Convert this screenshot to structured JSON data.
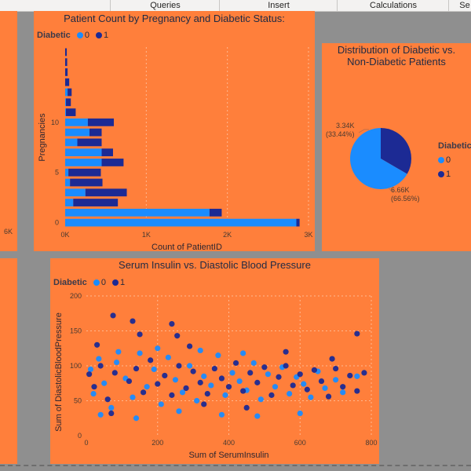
{
  "ribbon": {
    "tabs": [
      {
        "label": "Queries",
        "left": 140,
        "width": 139
      },
      {
        "label": "Insert",
        "left": 279,
        "width": 150
      },
      {
        "label": "Calculations",
        "left": 429,
        "width": 142
      },
      {
        "label": "Se",
        "left": 571,
        "width": 40
      }
    ]
  },
  "left_partial": {
    "tick": "6K"
  },
  "bar_chart": {
    "title": "Patient Count by Pregnancy and Diabetic Status:",
    "legend": {
      "title": "Diabetic",
      "items": [
        {
          "label": "0",
          "color": "#1a8cff"
        },
        {
          "label": "1",
          "color": "#1c2a94"
        }
      ]
    },
    "xlabel": "Count of PatientID",
    "ylabel": "Pregnancies",
    "x_ticks": [
      "0K",
      "1K",
      "2K",
      "3K"
    ],
    "y_ticks": [
      "0",
      "5",
      "10"
    ],
    "chart_data": {
      "type": "bar",
      "orientation": "horizontal",
      "stacked": true,
      "categories": [
        "0",
        "1",
        "2",
        "3",
        "4",
        "5",
        "6",
        "7",
        "8",
        "9",
        "10",
        "11",
        "12",
        "13",
        "14",
        "15",
        "16",
        "17"
      ],
      "series": [
        {
          "name": "0",
          "color": "#1a8cff",
          "values": [
            2850,
            1780,
            100,
            250,
            60,
            40,
            450,
            450,
            150,
            300,
            280,
            10,
            10,
            30,
            0,
            0,
            0,
            0
          ]
        },
        {
          "name": "1",
          "color": "#1c2a94",
          "values": [
            40,
            150,
            550,
            510,
            400,
            400,
            270,
            140,
            300,
            150,
            320,
            120,
            60,
            50,
            50,
            30,
            25,
            20
          ]
        }
      ],
      "xlim": [
        0,
        3000
      ]
    }
  },
  "pie_chart": {
    "title_line1": "Distribution of Diabetic vs.",
    "title_line2": "Non-Diabetic Patients",
    "legend": {
      "title": "Diabetic",
      "items": [
        {
          "label": "0",
          "color": "#1a8cff"
        },
        {
          "label": "1",
          "color": "#1c2a94"
        }
      ]
    },
    "labels": [
      {
        "value": "3.34K",
        "pct": "(33.44%)"
      },
      {
        "value": "6.66K",
        "pct": "(66.56%)"
      }
    ],
    "chart_data": {
      "type": "pie",
      "categories": [
        "1",
        "0"
      ],
      "values": [
        3.34,
        6.66
      ],
      "colors": [
        "#1c2a94",
        "#1a8cff"
      ]
    }
  },
  "scatter_chart": {
    "title": "Serum Insulin vs. Diastolic Blood Pressure",
    "legend": {
      "title": "Diabetic",
      "items": [
        {
          "label": "0",
          "color": "#1a8cff"
        },
        {
          "label": "1",
          "color": "#1c2a94"
        }
      ]
    },
    "xlabel": "Sum of SerumInsulin",
    "ylabel": "Sum of DiastolicBloodPressure",
    "x_ticks": [
      "0",
      "200",
      "400",
      "600",
      "800"
    ],
    "y_ticks": [
      "0",
      "50",
      "100",
      "150",
      "200"
    ],
    "chart_data": {
      "type": "scatter",
      "xlim": [
        0,
        800
      ],
      "ylim": [
        0,
        200
      ],
      "series": [
        {
          "name": "0",
          "color": "#1a8cff",
          "points": [
            [
              12,
              95
            ],
            [
              20,
              60
            ],
            [
              35,
              110
            ],
            [
              50,
              75
            ],
            [
              70,
              40
            ],
            [
              85,
              105
            ],
            [
              110,
              82
            ],
            [
              130,
              55
            ],
            [
              150,
              118
            ],
            [
              170,
              70
            ],
            [
              190,
              95
            ],
            [
              210,
              45
            ],
            [
              230,
              112
            ],
            [
              250,
              80
            ],
            [
              270,
              62
            ],
            [
              290,
              100
            ],
            [
              310,
              50
            ],
            [
              330,
              85
            ],
            [
              350,
              72
            ],
            [
              370,
              115
            ],
            [
              390,
              58
            ],
            [
              410,
              90
            ],
            [
              430,
              78
            ],
            [
              450,
              65
            ],
            [
              470,
              104
            ],
            [
              490,
              52
            ],
            [
              510,
              88
            ],
            [
              530,
              70
            ],
            [
              550,
              98
            ],
            [
              570,
              60
            ],
            [
              590,
              84
            ],
            [
              610,
              74
            ],
            [
              630,
              55
            ],
            [
              650,
              92
            ],
            [
              670,
              68
            ],
            [
              700,
              80
            ],
            [
              720,
              62
            ],
            [
              760,
              85
            ],
            [
              40,
              30
            ],
            [
              140,
              25
            ],
            [
              260,
              35
            ],
            [
              380,
              30
            ],
            [
              480,
              28
            ],
            [
              600,
              32
            ],
            [
              90,
              120
            ],
            [
              200,
              125
            ],
            [
              320,
              122
            ],
            [
              440,
              118
            ]
          ]
        },
        {
          "name": "1",
          "color": "#1c2a94",
          "points": [
            [
              8,
              88
            ],
            [
              22,
              70
            ],
            [
              40,
              100
            ],
            [
              60,
              52
            ],
            [
              80,
              90
            ],
            [
              120,
              78
            ],
            [
              140,
              96
            ],
            [
              160,
              62
            ],
            [
              180,
              108
            ],
            [
              200,
              74
            ],
            [
              220,
              86
            ],
            [
              240,
              58
            ],
            [
              260,
              100
            ],
            [
              280,
              68
            ],
            [
              300,
              92
            ],
            [
              320,
              76
            ],
            [
              340,
              60
            ],
            [
              360,
              96
            ],
            [
              380,
              82
            ],
            [
              400,
              70
            ],
            [
              420,
              104
            ],
            [
              440,
              64
            ],
            [
              460,
              90
            ],
            [
              480,
              76
            ],
            [
              500,
              98
            ],
            [
              520,
              58
            ],
            [
              540,
              84
            ],
            [
              560,
              100
            ],
            [
              580,
              72
            ],
            [
              600,
              88
            ],
            [
              620,
              66
            ],
            [
              640,
              94
            ],
            [
              660,
              78
            ],
            [
              680,
              56
            ],
            [
              700,
              96
            ],
            [
              720,
              70
            ],
            [
              740,
              86
            ],
            [
              760,
              64
            ],
            [
              780,
              90
            ],
            [
              130,
              164
            ],
            [
              240,
              160
            ],
            [
              255,
              143
            ],
            [
              760,
              146
            ],
            [
              75,
              172
            ],
            [
              150,
              145
            ],
            [
              290,
              128
            ],
            [
              70,
              32
            ],
            [
              30,
              130
            ],
            [
              330,
              45
            ],
            [
              450,
              40
            ],
            [
              560,
              120
            ],
            [
              690,
              110
            ]
          ]
        }
      ]
    }
  },
  "colors": {
    "panel": "#ff7f3b",
    "canvas": "#8f8f8f",
    "series0": "#1a8cff",
    "series1": "#1c2a94"
  }
}
